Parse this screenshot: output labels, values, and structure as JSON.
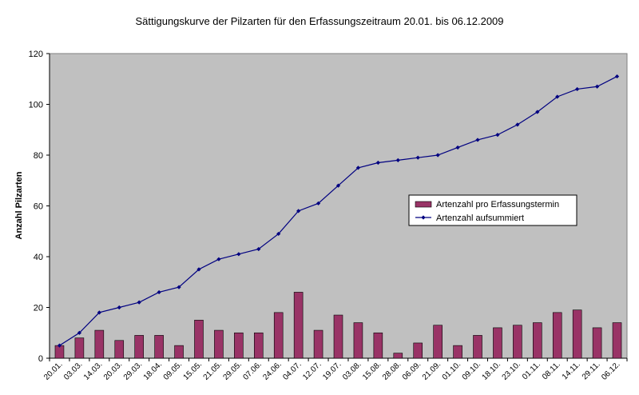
{
  "chart_data": {
    "type": "bar+line",
    "title": "Sättigungskurve der Pilzarten für den Erfassungszeitraum 20.01. bis 06.12.2009",
    "xlabel": "",
    "ylabel": "Anzahl Pilzarten",
    "ylim": [
      0,
      120
    ],
    "yticks": [
      0,
      20,
      40,
      60,
      80,
      100,
      120
    ],
    "grid": false,
    "legend_position": "right",
    "categories": [
      "20.01.",
      "03.03.",
      "14.03.",
      "20.03.",
      "29.03.",
      "18.04.",
      "09.05.",
      "15.05.",
      "21.05.",
      "29.05.",
      "07.06.",
      "24.06.",
      "04.07.",
      "12.07.",
      "19.07.",
      "03.08.",
      "15.08.",
      "28.08.",
      "06.09.",
      "21.09.",
      "01.10.",
      "09.10.",
      "18.10.",
      "23.10.",
      "01.11.",
      "08.11.",
      "14.11.",
      "29.11.",
      "06.12."
    ],
    "series": [
      {
        "name": "Artenzahl pro Erfassungstermin",
        "type": "bar",
        "color": "#993366",
        "values": [
          5,
          8,
          11,
          7,
          9,
          9,
          5,
          15,
          11,
          10,
          10,
          18,
          26,
          11,
          17,
          14,
          10,
          2,
          6,
          13,
          5,
          9,
          12,
          13,
          14,
          18,
          19,
          12,
          14
        ]
      },
      {
        "name": "Artenzahl aufsummiert",
        "type": "line",
        "color": "#000080",
        "values": [
          5,
          10,
          18,
          20,
          22,
          26,
          28,
          35,
          39,
          41,
          43,
          49,
          58,
          61,
          68,
          75,
          77,
          78,
          79,
          80,
          83,
          86,
          88,
          92,
          97,
          103,
          106,
          107,
          111
        ]
      }
    ],
    "plot_background": "#c0c0c0"
  }
}
